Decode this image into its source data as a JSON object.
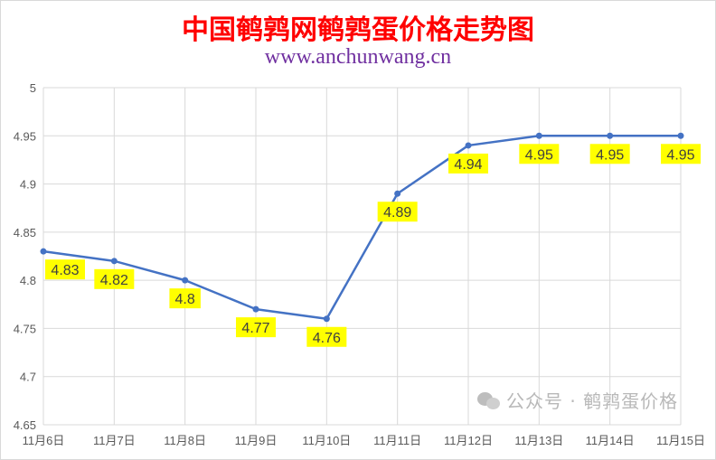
{
  "chart_data": {
    "type": "line",
    "title": "中国鹌鹑网鹌鹑蛋价格走势图",
    "subtitle": "www.anchunwang.cn",
    "categories": [
      "11月6日",
      "11月7日",
      "11月8日",
      "11月9日",
      "11月10日",
      "11月11日",
      "11月12日",
      "11月13日",
      "11月14日",
      "11月15日"
    ],
    "values": [
      4.83,
      4.82,
      4.8,
      4.77,
      4.76,
      4.89,
      4.94,
      4.95,
      4.95,
      4.95
    ],
    "data_labels": [
      "4.83",
      "4.82",
      "4.8",
      "4.77",
      "4.76",
      "4.89",
      "4.94",
      "4.95",
      "4.95",
      "4.95"
    ],
    "yticks": [
      "4.65",
      "4.7",
      "4.75",
      "4.8",
      "4.85",
      "4.9",
      "4.95",
      "5"
    ],
    "ylim": [
      4.65,
      5
    ],
    "grid": true,
    "line_color": "#4472c4",
    "label_bg_color": "#ffff00"
  },
  "watermark": "公众号 · 鹌鹑蛋价格"
}
